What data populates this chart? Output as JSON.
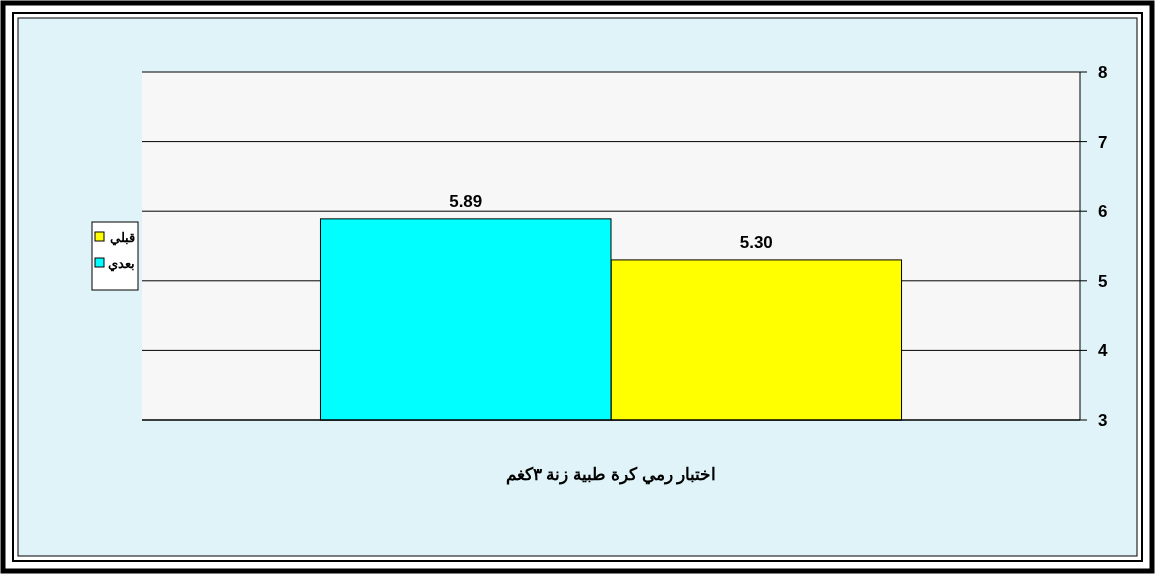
{
  "chart_data": {
    "type": "bar",
    "xlabel": "اختبار رمي كرة طبية زنة ٣كغم",
    "categories": [
      null
    ],
    "series": [
      {
        "name": "قبلي",
        "color": "#ffff00",
        "values": [
          5.3
        ],
        "value_labels": [
          "5.30"
        ]
      },
      {
        "name": "بعدي",
        "color": "#00ffff",
        "values": [
          5.89
        ],
        "value_labels": [
          "5.89"
        ]
      }
    ],
    "ylim": [
      3,
      8
    ],
    "yticks": [
      3,
      4,
      5,
      6,
      7,
      8
    ],
    "grid": "y",
    "legend": "left"
  }
}
